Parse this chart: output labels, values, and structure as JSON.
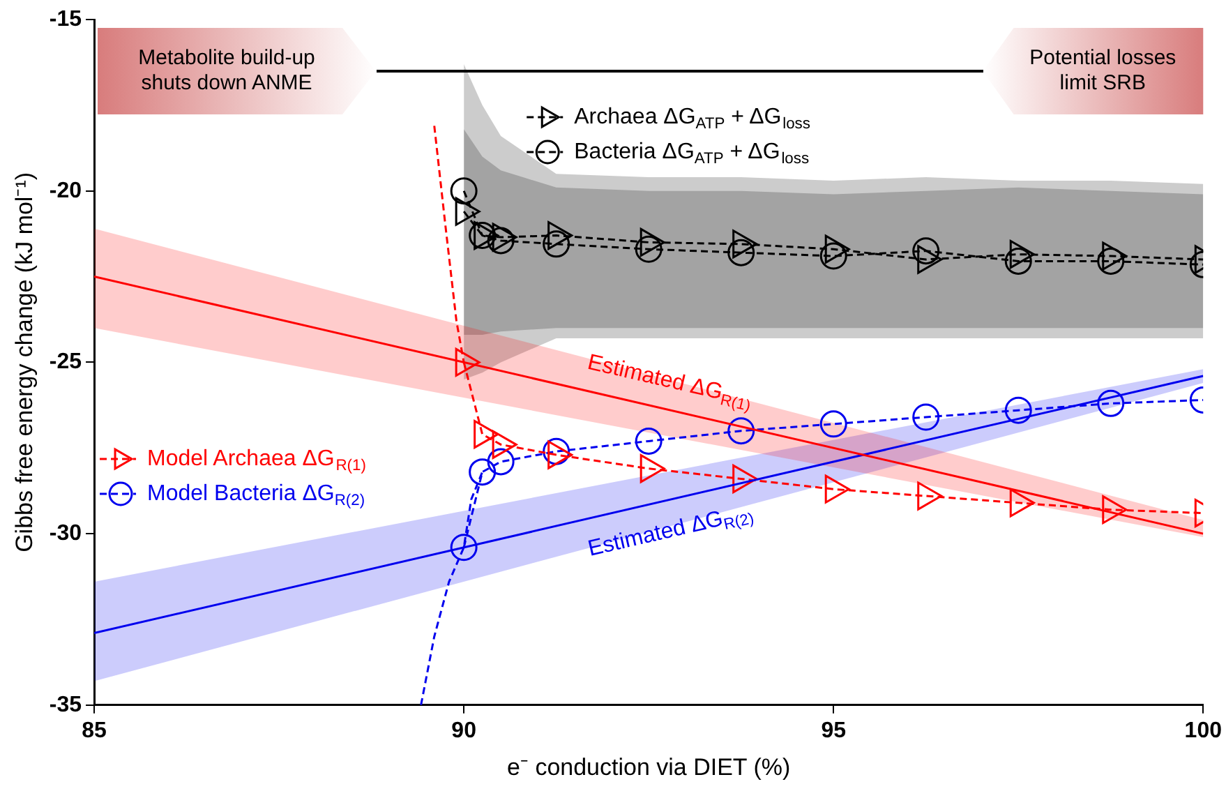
{
  "chart_data": {
    "type": "line",
    "xlabel": "e⁻ conduction via DIET (%)",
    "ylabel": "Gibbs free energy change (kJ mol⁻¹)",
    "xlim": [
      85,
      100
    ],
    "ylim": [
      -35,
      -15
    ],
    "xticks": [
      85,
      90,
      95,
      100
    ],
    "yticks": [
      -35,
      -30,
      -25,
      -20,
      -15
    ],
    "grid": false,
    "legend": "top",
    "annotations": [
      "Metabolite build-up shuts down ANME",
      "Potential losses limit SRB",
      {
        "text": "Estimated ΔG$_{R(1)}$",
        "x": 92.7,
        "y": -26.35
      },
      {
        "text": "Estimated ΔG$_{R(2)}$",
        "x": 92.7,
        "y": -29.05
      }
    ],
    "series": [
      {
        "color": "#ff0000",
        "x": [
          85,
          100
        ],
        "values": [
          -22.5,
          -30.0
        ],
        "lower": [
          -24.0,
          -30.1
        ],
        "upper": [
          -21.1,
          -29.6
        ],
        "marker": "none",
        "line_style": "solid"
      },
      {
        "color": "#0000ee",
        "x": [
          85,
          100
        ],
        "values": [
          -32.9,
          -25.4
        ],
        "lower": [
          -34.3,
          -25.6
        ],
        "upper": [
          -31.4,
          -25.2
        ],
        "marker": "none",
        "line_style": "solid"
      },
      {
        "name": "Archaea ΔG$_{ATP}$ + ΔG$_{loss}$",
        "color": "#000000",
        "x": [
          90,
          90.25,
          90.5,
          91.25,
          92.5,
          93.75,
          95,
          96.25,
          97.5,
          98.75,
          100
        ],
        "values": [
          -20.6,
          -21.3,
          -21.35,
          -21.3,
          -21.5,
          -21.55,
          -21.7,
          -22.0,
          -21.85,
          -21.9,
          -22.0
        ],
        "lower": [
          -25.5,
          -25.3,
          -25.0,
          -24.3,
          -24.3,
          -24.3,
          -24.3,
          -24.3,
          -24.3,
          -24.3,
          -24.3
        ],
        "upper": [
          -16.3,
          -17.5,
          -18.4,
          -19.5,
          -19.6,
          -19.6,
          -19.7,
          -19.6,
          -19.7,
          -19.7,
          -19.8
        ],
        "marker": "triangle",
        "line_style": "dashed"
      },
      {
        "name": "Bacteria ΔG$_{ATP}$ + ΔG$_{loss}$",
        "color": "#000000",
        "x": [
          90,
          90.25,
          90.5,
          91.25,
          92.5,
          93.75,
          95,
          96.25,
          97.5,
          98.75,
          100
        ],
        "values": [
          -20.0,
          -21.3,
          -21.45,
          -21.55,
          -21.7,
          -21.8,
          -21.9,
          -21.75,
          -22.05,
          -22.05,
          -22.15
        ],
        "lower": [
          -24.2,
          -24.2,
          -24.1,
          -24.0,
          -24.0,
          -24.0,
          -24.0,
          -24.0,
          -24.0,
          -24.0,
          -24.0
        ],
        "upper": [
          -18.2,
          -19.0,
          -19.4,
          -19.9,
          -20.0,
          -20.0,
          -20.1,
          -20.0,
          -19.9,
          -20.0,
          -20.1
        ],
        "marker": "circle",
        "line_style": "dashed"
      },
      {
        "color": "#ff0000",
        "x": [
          89.6,
          89.75,
          89.9,
          90
        ],
        "values": [
          -18.1,
          -21.0,
          -23.8,
          -25.0
        ],
        "marker": "none",
        "line_style": "dashed"
      },
      {
        "color": "#0000ee",
        "x": [
          89.42,
          89.6,
          89.8,
          90,
          90.1,
          90.25
        ],
        "values": [
          -35.0,
          -33.0,
          -31.4,
          -30.4,
          -29.0,
          -28.2
        ],
        "marker": "none",
        "line_style": "dashed"
      },
      {
        "name": "Model Archaea ΔG$_{R(1)}$",
        "color": "#ff0000",
        "x": [
          90,
          90.25,
          90.5,
          91.25,
          92.5,
          93.75,
          95,
          96.25,
          97.5,
          98.75,
          100
        ],
        "values": [
          -25.0,
          -27.1,
          -27.4,
          -27.7,
          -28.1,
          -28.4,
          -28.7,
          -28.9,
          -29.1,
          -29.3,
          -29.4
        ],
        "marker": "triangle",
        "line_style": "dashed"
      },
      {
        "name": "Model Bacteria ΔG$_{R(2)}$",
        "color": "#0000ee",
        "x": [
          90,
          90.25,
          90.5,
          91.25,
          92.5,
          93.75,
          95,
          96.25,
          97.5,
          98.75,
          100
        ],
        "values": [
          -30.4,
          -28.2,
          -27.9,
          -27.6,
          -27.3,
          -27.0,
          -26.8,
          -26.6,
          -26.4,
          -26.2,
          -26.1
        ],
        "marker": "circle",
        "line_style": "dashed"
      }
    ]
  }
}
